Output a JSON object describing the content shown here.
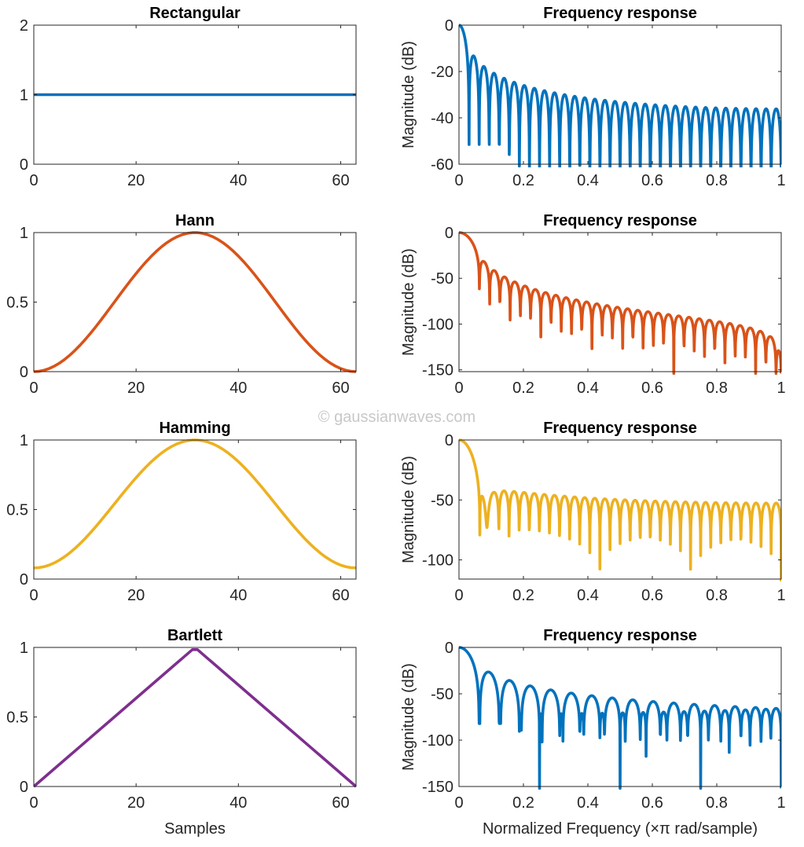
{
  "watermark": "© gaussianwaves.com",
  "chart_data": [
    {
      "type": "line",
      "title": "Rectangular",
      "window": "rectangular",
      "length": 64,
      "domain": "time",
      "color": "#0072BD",
      "xlim": [
        0,
        63
      ],
      "ylim": [
        0,
        2
      ],
      "xticks": [
        "0",
        "20",
        "40",
        "60"
      ],
      "yticks": [
        "0",
        "1",
        "2"
      ],
      "xlabel": "",
      "ylabel": ""
    },
    {
      "type": "line",
      "title": "Frequency response",
      "window": "rectangular",
      "length": 64,
      "domain": "frequency",
      "color": "#0072BD",
      "xlim": [
        0,
        1
      ],
      "ylim": [
        -60,
        0
      ],
      "xticks": [
        "0",
        "0.2",
        "0.4",
        "0.6",
        "0.8",
        "1"
      ],
      "yticks": [
        "0",
        "-20",
        "-40",
        "-60"
      ],
      "xlabel": "",
      "ylabel": "Magnitude (dB)"
    },
    {
      "type": "line",
      "title": "Hann",
      "window": "hann",
      "length": 64,
      "domain": "time",
      "color": "#D95319",
      "xlim": [
        0,
        63
      ],
      "ylim": [
        0,
        1
      ],
      "xticks": [
        "0",
        "20",
        "40",
        "60"
      ],
      "yticks": [
        "0",
        "0.5",
        "1"
      ],
      "xlabel": "",
      "ylabel": ""
    },
    {
      "type": "line",
      "title": "Frequency response",
      "window": "hann",
      "length": 64,
      "domain": "frequency",
      "color": "#D95319",
      "xlim": [
        0,
        1
      ],
      "ylim": [
        -152,
        0
      ],
      "xticks": [
        "0",
        "0.2",
        "0.4",
        "0.6",
        "0.8",
        "1"
      ],
      "yticks": [
        "0",
        "-50",
        "-100",
        "-150"
      ],
      "xlabel": "",
      "ylabel": "Magnitude (dB)"
    },
    {
      "type": "line",
      "title": "Hamming",
      "window": "hamming",
      "length": 64,
      "domain": "time",
      "color": "#EDB120",
      "xlim": [
        0,
        63
      ],
      "ylim": [
        0,
        1
      ],
      "xticks": [
        "0",
        "20",
        "40",
        "60"
      ],
      "yticks": [
        "0",
        "0.5",
        "1"
      ],
      "xlabel": "",
      "ylabel": ""
    },
    {
      "type": "line",
      "title": "Frequency response",
      "window": "hamming",
      "length": 64,
      "domain": "frequency",
      "color": "#EDB120",
      "xlim": [
        0,
        1
      ],
      "ylim": [
        -116,
        0
      ],
      "xticks": [
        "0",
        "0.2",
        "0.4",
        "0.6",
        "0.8",
        "1"
      ],
      "yticks": [
        "0",
        "-50",
        "-100"
      ],
      "xlabel": "",
      "ylabel": "Magnitude (dB)"
    },
    {
      "type": "line",
      "title": "Bartlett",
      "window": "bartlett",
      "length": 64,
      "domain": "time",
      "color": "#7E2F8E",
      "xlim": [
        0,
        63
      ],
      "ylim": [
        0,
        1
      ],
      "xticks": [
        "0",
        "20",
        "40",
        "60"
      ],
      "yticks": [
        "0",
        "0.5",
        "1"
      ],
      "xlabel": "Samples",
      "ylabel": ""
    },
    {
      "type": "line",
      "title": "Frequency response",
      "window": "bartlett",
      "length": 64,
      "domain": "frequency",
      "color": "#0072BD",
      "xlim": [
        0,
        1
      ],
      "ylim": [
        -150,
        0
      ],
      "xticks": [
        "0",
        "0.2",
        "0.4",
        "0.6",
        "0.8",
        "1"
      ],
      "yticks": [
        "0",
        "-50",
        "-100",
        "-150"
      ],
      "xlabel": "Normalized Frequency (×π rad/sample)",
      "ylabel": "Magnitude (dB)"
    }
  ]
}
